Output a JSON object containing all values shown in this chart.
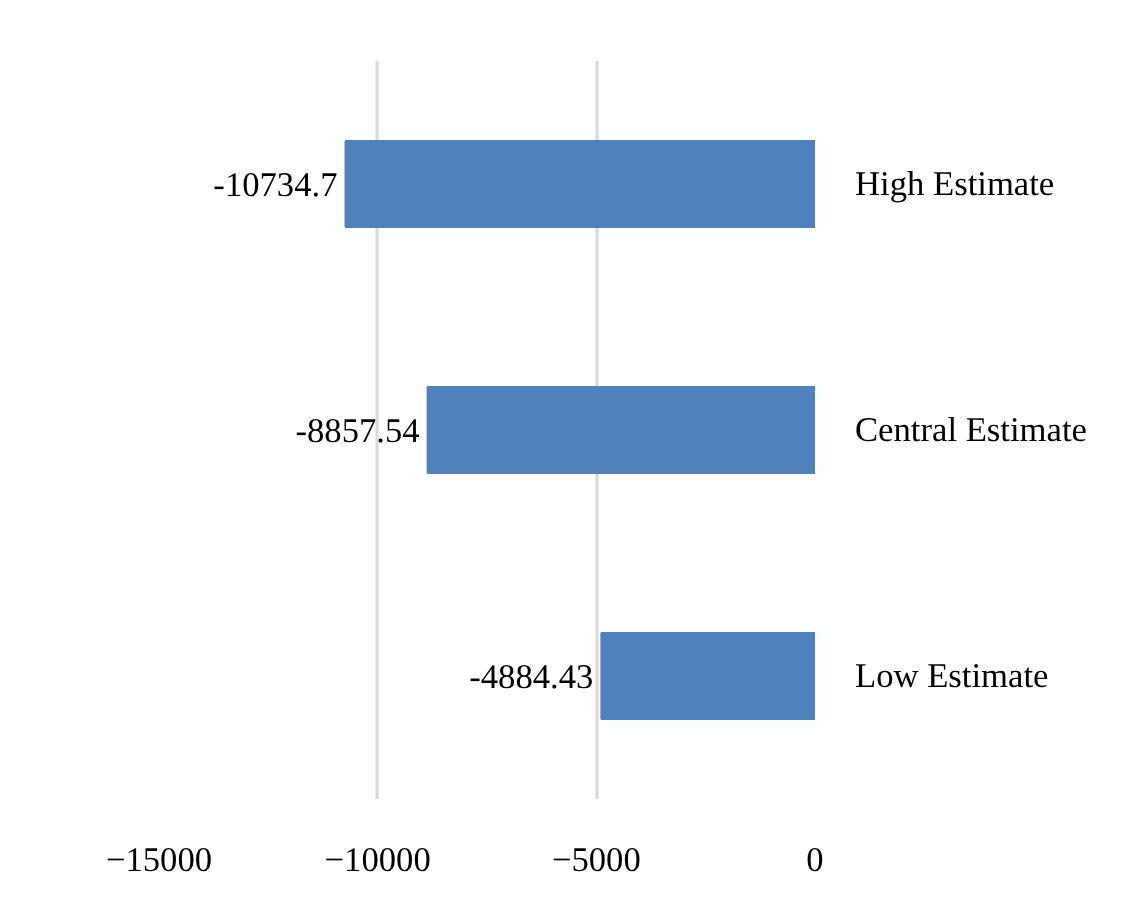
{
  "chart_data": {
    "type": "bar",
    "orientation": "horizontal",
    "categories": [
      "High Estimate",
      "Central Estimate",
      "Low Estimate"
    ],
    "values": [
      -10734.7,
      -8857.54,
      -4884.43
    ],
    "color": "#4f81bd",
    "xlim": [
      -15000,
      0
    ],
    "xticks": [
      -15000,
      -10000,
      -5000,
      0
    ],
    "grid": "x",
    "data_labels": true
  }
}
